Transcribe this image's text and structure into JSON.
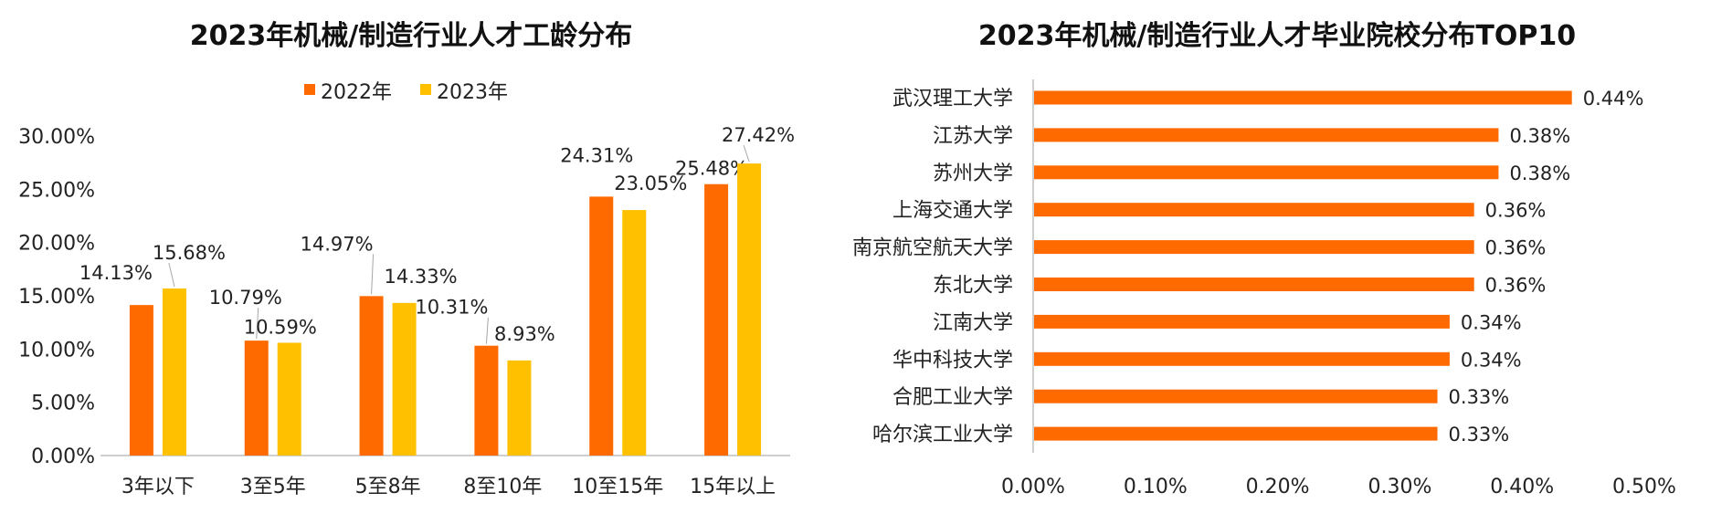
{
  "colors": {
    "orange": "#FF6A00",
    "yellow": "#FFC000",
    "axis": "#BFBFBF",
    "leader": "#A6A6A6"
  },
  "chart_data": [
    {
      "type": "bar",
      "title": "2023年机械/制造行业人才工龄分布",
      "categories": [
        "3年以下",
        "3至5年",
        "5至8年",
        "8至10年",
        "10至15年",
        "15年以上"
      ],
      "series": [
        {
          "name": "2022年",
          "values": [
            14.13,
            10.79,
            14.97,
            10.31,
            24.31,
            25.48
          ],
          "labels": [
            "14.13%",
            "10.79%",
            "14.97%",
            "10.31%",
            "24.31%",
            "25.48%"
          ]
        },
        {
          "name": "2023年",
          "values": [
            15.68,
            10.59,
            14.33,
            8.93,
            23.05,
            27.42
          ],
          "labels": [
            "15.68%",
            "10.59%",
            "14.33%",
            "8.93%",
            "23.05%",
            "27.42%"
          ]
        }
      ],
      "ylim": [
        0,
        30
      ],
      "yticks": [
        0,
        5,
        10,
        15,
        20,
        25,
        30
      ],
      "ytick_labels": [
        "0.00%",
        "5.00%",
        "10.00%",
        "15.00%",
        "20.00%",
        "25.00%",
        "30.00%"
      ],
      "legend_position": "top",
      "grid": false
    },
    {
      "type": "bar",
      "orientation": "horizontal",
      "title": "2023年机械/制造行业人才毕业院校分布TOP10",
      "categories": [
        "武汉理工大学",
        "江苏大学",
        "苏州大学",
        "上海交通大学",
        "南京航空航天大学",
        "东北大学",
        "江南大学",
        "华中科技大学",
        "合肥工业大学",
        "哈尔滨工业大学"
      ],
      "values": [
        0.44,
        0.38,
        0.38,
        0.36,
        0.36,
        0.36,
        0.34,
        0.34,
        0.33,
        0.33
      ],
      "labels": [
        "0.44%",
        "0.38%",
        "0.38%",
        "0.36%",
        "0.36%",
        "0.36%",
        "0.34%",
        "0.34%",
        "0.33%",
        "0.33%"
      ],
      "xlim": [
        0,
        0.5
      ],
      "xticks": [
        0,
        0.1,
        0.2,
        0.3,
        0.4,
        0.5
      ],
      "xtick_labels": [
        "0.00%",
        "0.10%",
        "0.20%",
        "0.30%",
        "0.40%",
        "0.50%"
      ],
      "grid": false
    }
  ]
}
